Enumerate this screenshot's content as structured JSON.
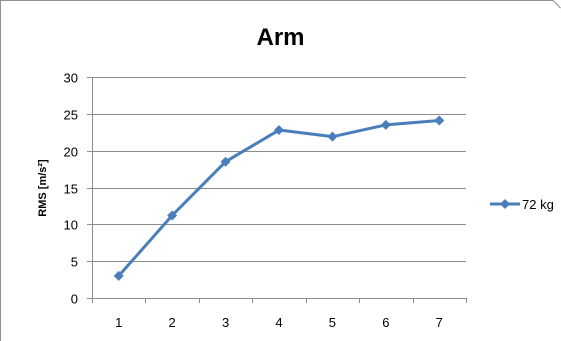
{
  "chart_data": {
    "type": "line",
    "title": "Arm",
    "xlabel": "",
    "ylabel": "RMS [m/s²]",
    "categories": [
      "1",
      "2",
      "3",
      "4",
      "5",
      "6",
      "7"
    ],
    "series": [
      {
        "name": "72 kg",
        "values": [
          3.0,
          11.2,
          18.5,
          22.8,
          21.9,
          23.5,
          24.1
        ],
        "color": "#4a7ebb"
      }
    ],
    "ylim": [
      0,
      30
    ],
    "yticks": [
      "0",
      "5",
      "10",
      "15",
      "20",
      "25",
      "30"
    ],
    "grid": true,
    "legend": "right"
  }
}
